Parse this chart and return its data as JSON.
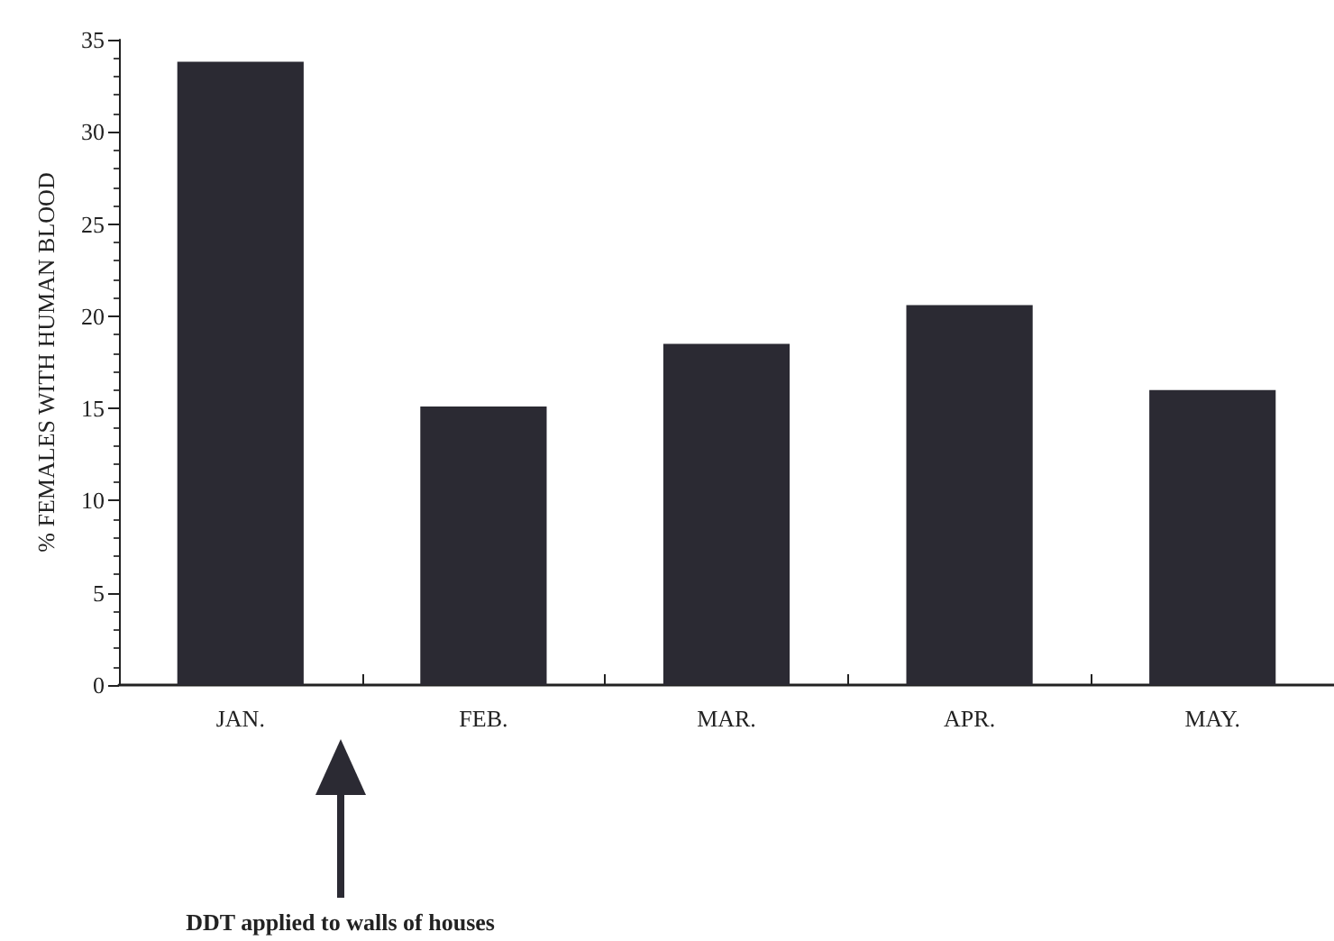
{
  "chart_data": {
    "type": "bar",
    "ylabel": "% FEMALES WITH HUMAN BLOOD",
    "categories": [
      "JAN.",
      "FEB.",
      "MAR.",
      "APR.",
      "MAY."
    ],
    "values": [
      33.8,
      15.1,
      18.5,
      20.6,
      16.0
    ],
    "color": "#2b2a33",
    "ylim": [
      0,
      35
    ],
    "yticks": [
      0,
      5,
      10,
      15,
      20,
      25,
      30,
      35
    ],
    "grid": false,
    "annotations": [
      "DDT applied to walls of houses"
    ]
  }
}
